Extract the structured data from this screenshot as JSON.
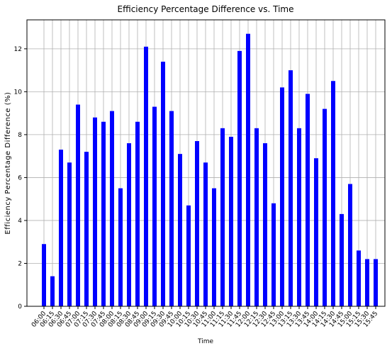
{
  "chart_data": {
    "type": "bar",
    "title": "Efficiency Percentage Difference vs. Time",
    "xlabel": "Time",
    "ylabel": "Efficiency Percentage Difference (%)",
    "categories": [
      "06:00",
      "06:15",
      "06:30",
      "06:45",
      "07:00",
      "07:15",
      "07:30",
      "07:45",
      "08:00",
      "08:15",
      "08:30",
      "08:45",
      "09:00",
      "09:15",
      "09:30",
      "09:45",
      "10:00",
      "10:15",
      "10:30",
      "10:45",
      "11:00",
      "11:15",
      "11:30",
      "11:45",
      "12:00",
      "12:15",
      "12:30",
      "12:45",
      "13:00",
      "13:15",
      "13:30",
      "13:45",
      "14:00",
      "14:15",
      "14:30",
      "14:45",
      "15:00",
      "15:15",
      "15:30",
      "15:45"
    ],
    "values": [
      2.9,
      1.4,
      7.3,
      6.7,
      9.4,
      7.2,
      8.8,
      8.6,
      9.1,
      5.5,
      7.6,
      8.6,
      12.1,
      9.3,
      11.4,
      9.1,
      7.1,
      4.7,
      7.7,
      6.7,
      5.5,
      8.3,
      7.9,
      11.9,
      12.7,
      8.3,
      7.6,
      4.8,
      10.2,
      11.0,
      8.3,
      9.9,
      6.9,
      9.2,
      10.5,
      4.3,
      5.7,
      2.6,
      2.2,
      2.2
    ],
    "color": "#0000ff",
    "ylim": [
      0,
      13.35
    ],
    "yticks": [
      0,
      2,
      4,
      6,
      8,
      10,
      12
    ],
    "grid": true
  }
}
